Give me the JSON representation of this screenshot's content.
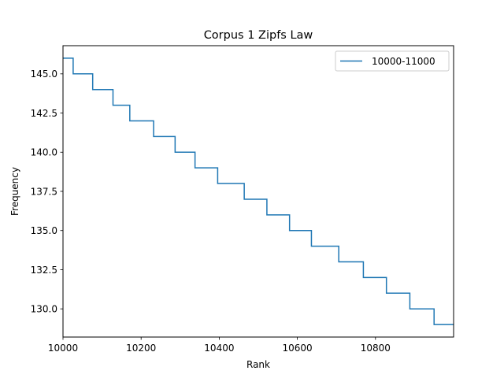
{
  "chart_data": {
    "type": "line",
    "title": "Corpus 1 Zipfs Law",
    "xlabel": "Rank",
    "ylabel": "Frequency",
    "xlim": [
      10000,
      11000
    ],
    "ylim": [
      128.2,
      146.8
    ],
    "xticks": [
      10000,
      10200,
      10400,
      10600,
      10800
    ],
    "xtick_labels": [
      "10000",
      "10200",
      "10400",
      "10600",
      "10800"
    ],
    "yticks": [
      130.0,
      132.5,
      135.0,
      137.5,
      140.0,
      142.5,
      145.0
    ],
    "ytick_labels": [
      "130.0",
      "132.5",
      "135.0",
      "137.5",
      "140.0",
      "142.5",
      "145.0"
    ],
    "grid": false,
    "legend_position": "upper right",
    "series": [
      {
        "name": "10000-11000",
        "color": "#1f77b4",
        "step": "post",
        "x": [
          10000,
          10026,
          10076,
          10128,
          10171,
          10232,
          10287,
          10338,
          10396,
          10464,
          10522,
          10580,
          10636,
          10706,
          10769,
          10828,
          10888,
          10950,
          11000
        ],
        "y": [
          146,
          145,
          144,
          143,
          142,
          141,
          140,
          139,
          138,
          137,
          136,
          135,
          134,
          133,
          132,
          131,
          130,
          129,
          129
        ]
      }
    ]
  }
}
